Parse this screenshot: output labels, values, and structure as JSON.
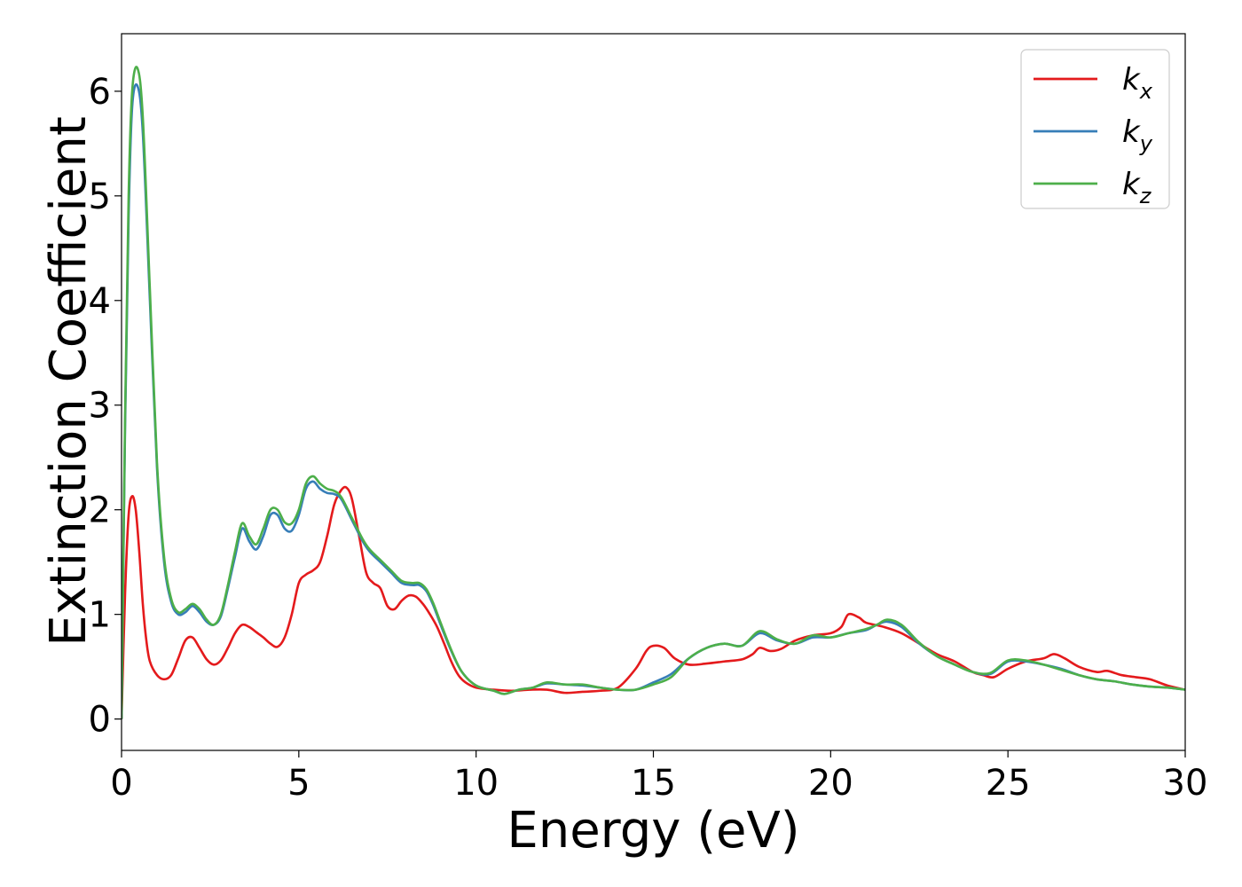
{
  "chart_data": {
    "type": "line",
    "title": "",
    "xlabel": "Energy (eV)",
    "ylabel": "Extinction Coefficient",
    "xlim": [
      0,
      30
    ],
    "ylim": [
      -0.3,
      6.55
    ],
    "xticks": [
      0,
      5,
      10,
      15,
      20,
      25,
      30
    ],
    "yticks": [
      0,
      1,
      2,
      3,
      4,
      5,
      6
    ],
    "grid": false,
    "legend_position": "top-right",
    "series": [
      {
        "name": "k_x",
        "main": "k",
        "sub": "x",
        "color": "#e41a1c",
        "x": [
          0,
          0.1,
          0.2,
          0.3,
          0.4,
          0.5,
          0.6,
          0.7,
          0.8,
          1.0,
          1.2,
          1.4,
          1.6,
          1.8,
          2.0,
          2.2,
          2.4,
          2.6,
          2.8,
          3.0,
          3.2,
          3.4,
          3.6,
          3.8,
          4.0,
          4.2,
          4.4,
          4.6,
          4.8,
          5.0,
          5.2,
          5.4,
          5.6,
          5.8,
          6.0,
          6.2,
          6.35,
          6.5,
          6.7,
          6.9,
          7.1,
          7.3,
          7.5,
          7.7,
          7.9,
          8.1,
          8.3,
          8.5,
          8.7,
          8.9,
          9.1,
          9.3,
          9.5,
          9.7,
          10.0,
          10.5,
          11.0,
          11.5,
          12.0,
          12.5,
          13.0,
          13.5,
          14.0,
          14.5,
          14.8,
          15.0,
          15.3,
          15.6,
          16.0,
          16.5,
          17.0,
          17.5,
          17.8,
          18.0,
          18.3,
          18.6,
          19.0,
          19.5,
          20.0,
          20.3,
          20.5,
          20.8,
          21.0,
          21.5,
          22.0,
          22.5,
          23.0,
          23.5,
          24.0,
          24.3,
          24.6,
          25.0,
          25.5,
          26.0,
          26.3,
          26.6,
          27.0,
          27.5,
          27.8,
          28.2,
          28.6,
          29.0,
          29.5,
          30.0
        ],
        "y": [
          0.0,
          1.2,
          1.95,
          2.13,
          2.0,
          1.6,
          1.1,
          0.75,
          0.55,
          0.42,
          0.38,
          0.42,
          0.58,
          0.75,
          0.78,
          0.68,
          0.57,
          0.52,
          0.56,
          0.68,
          0.82,
          0.9,
          0.88,
          0.83,
          0.78,
          0.72,
          0.69,
          0.78,
          1.0,
          1.3,
          1.38,
          1.42,
          1.5,
          1.75,
          2.05,
          2.19,
          2.21,
          2.1,
          1.75,
          1.4,
          1.3,
          1.25,
          1.08,
          1.05,
          1.13,
          1.18,
          1.17,
          1.1,
          1.0,
          0.88,
          0.72,
          0.55,
          0.42,
          0.35,
          0.3,
          0.28,
          0.27,
          0.28,
          0.28,
          0.25,
          0.26,
          0.27,
          0.3,
          0.48,
          0.65,
          0.7,
          0.68,
          0.58,
          0.52,
          0.53,
          0.55,
          0.57,
          0.62,
          0.68,
          0.65,
          0.67,
          0.75,
          0.8,
          0.82,
          0.88,
          1.0,
          0.97,
          0.92,
          0.88,
          0.82,
          0.72,
          0.62,
          0.55,
          0.45,
          0.42,
          0.4,
          0.48,
          0.55,
          0.58,
          0.62,
          0.58,
          0.5,
          0.45,
          0.46,
          0.42,
          0.4,
          0.38,
          0.32,
          0.28
        ]
      },
      {
        "name": "k_y",
        "main": "k",
        "sub": "y",
        "color": "#377eb8",
        "x": [
          0,
          0.1,
          0.2,
          0.3,
          0.45,
          0.6,
          0.8,
          1.0,
          1.2,
          1.4,
          1.6,
          1.8,
          2.0,
          2.2,
          2.4,
          2.6,
          2.8,
          3.0,
          3.2,
          3.4,
          3.6,
          3.8,
          4.0,
          4.2,
          4.4,
          4.6,
          4.8,
          5.0,
          5.2,
          5.4,
          5.6,
          5.8,
          6.0,
          6.2,
          6.5,
          6.8,
          7.0,
          7.3,
          7.6,
          7.9,
          8.2,
          8.4,
          8.6,
          8.8,
          9.0,
          9.3,
          9.6,
          10.0,
          10.5,
          10.8,
          11.2,
          11.6,
          12.0,
          12.5,
          13.0,
          13.5,
          14.0,
          14.5,
          15.0,
          15.5,
          16.0,
          16.5,
          17.0,
          17.5,
          18.0,
          18.5,
          19.0,
          19.5,
          20.0,
          20.5,
          21.0,
          21.3,
          21.6,
          22.0,
          22.5,
          23.0,
          23.5,
          24.0,
          24.5,
          25.0,
          25.5,
          26.0,
          26.5,
          27.0,
          27.5,
          28.0,
          28.5,
          29.0,
          29.5,
          30.0
        ],
        "y": [
          0.0,
          2.8,
          4.8,
          5.85,
          6.05,
          5.6,
          4.0,
          2.4,
          1.5,
          1.12,
          1.0,
          1.02,
          1.08,
          1.02,
          0.93,
          0.9,
          0.98,
          1.25,
          1.55,
          1.82,
          1.7,
          1.62,
          1.75,
          1.95,
          1.95,
          1.82,
          1.8,
          1.95,
          2.2,
          2.27,
          2.2,
          2.16,
          2.15,
          2.1,
          1.9,
          1.7,
          1.6,
          1.5,
          1.4,
          1.3,
          1.28,
          1.28,
          1.22,
          1.08,
          0.9,
          0.65,
          0.45,
          0.32,
          0.27,
          0.24,
          0.28,
          0.3,
          0.34,
          0.33,
          0.32,
          0.3,
          0.28,
          0.28,
          0.35,
          0.43,
          0.58,
          0.68,
          0.72,
          0.7,
          0.82,
          0.75,
          0.72,
          0.78,
          0.78,
          0.82,
          0.85,
          0.9,
          0.93,
          0.88,
          0.72,
          0.6,
          0.52,
          0.45,
          0.43,
          0.55,
          0.55,
          0.52,
          0.48,
          0.42,
          0.38,
          0.36,
          0.33,
          0.31,
          0.3,
          0.28
        ]
      },
      {
        "name": "k_z",
        "main": "k",
        "sub": "z",
        "color": "#4daf4a",
        "x": [
          0,
          0.1,
          0.2,
          0.3,
          0.45,
          0.6,
          0.8,
          1.0,
          1.2,
          1.4,
          1.6,
          1.8,
          2.0,
          2.2,
          2.4,
          2.6,
          2.8,
          3.0,
          3.2,
          3.4,
          3.6,
          3.8,
          4.0,
          4.2,
          4.4,
          4.6,
          4.8,
          5.0,
          5.2,
          5.4,
          5.6,
          5.8,
          6.0,
          6.2,
          6.5,
          6.8,
          7.0,
          7.3,
          7.6,
          7.9,
          8.2,
          8.4,
          8.6,
          8.8,
          9.0,
          9.3,
          9.6,
          10.0,
          10.5,
          10.8,
          11.2,
          11.6,
          12.0,
          12.5,
          13.0,
          13.5,
          14.0,
          14.5,
          15.0,
          15.5,
          16.0,
          16.5,
          17.0,
          17.5,
          18.0,
          18.5,
          19.0,
          19.5,
          20.0,
          20.5,
          21.0,
          21.3,
          21.6,
          22.0,
          22.5,
          23.0,
          23.5,
          24.0,
          24.5,
          25.0,
          25.5,
          26.0,
          26.5,
          27.0,
          27.5,
          28.0,
          28.5,
          29.0,
          29.5,
          30.0
        ],
        "y": [
          0.0,
          2.9,
          5.0,
          6.0,
          6.22,
          5.75,
          4.1,
          2.45,
          1.55,
          1.15,
          1.02,
          1.05,
          1.1,
          1.05,
          0.95,
          0.9,
          1.0,
          1.28,
          1.6,
          1.87,
          1.75,
          1.67,
          1.82,
          2.0,
          2.0,
          1.88,
          1.87,
          2.0,
          2.25,
          2.32,
          2.25,
          2.2,
          2.18,
          2.12,
          1.92,
          1.72,
          1.62,
          1.52,
          1.42,
          1.32,
          1.3,
          1.3,
          1.24,
          1.1,
          0.92,
          0.66,
          0.45,
          0.32,
          0.27,
          0.24,
          0.28,
          0.3,
          0.35,
          0.33,
          0.33,
          0.3,
          0.28,
          0.28,
          0.33,
          0.4,
          0.58,
          0.68,
          0.72,
          0.7,
          0.84,
          0.76,
          0.72,
          0.8,
          0.78,
          0.82,
          0.86,
          0.9,
          0.95,
          0.9,
          0.73,
          0.6,
          0.52,
          0.45,
          0.44,
          0.56,
          0.56,
          0.52,
          0.47,
          0.42,
          0.38,
          0.36,
          0.33,
          0.31,
          0.3,
          0.28
        ]
      }
    ]
  }
}
